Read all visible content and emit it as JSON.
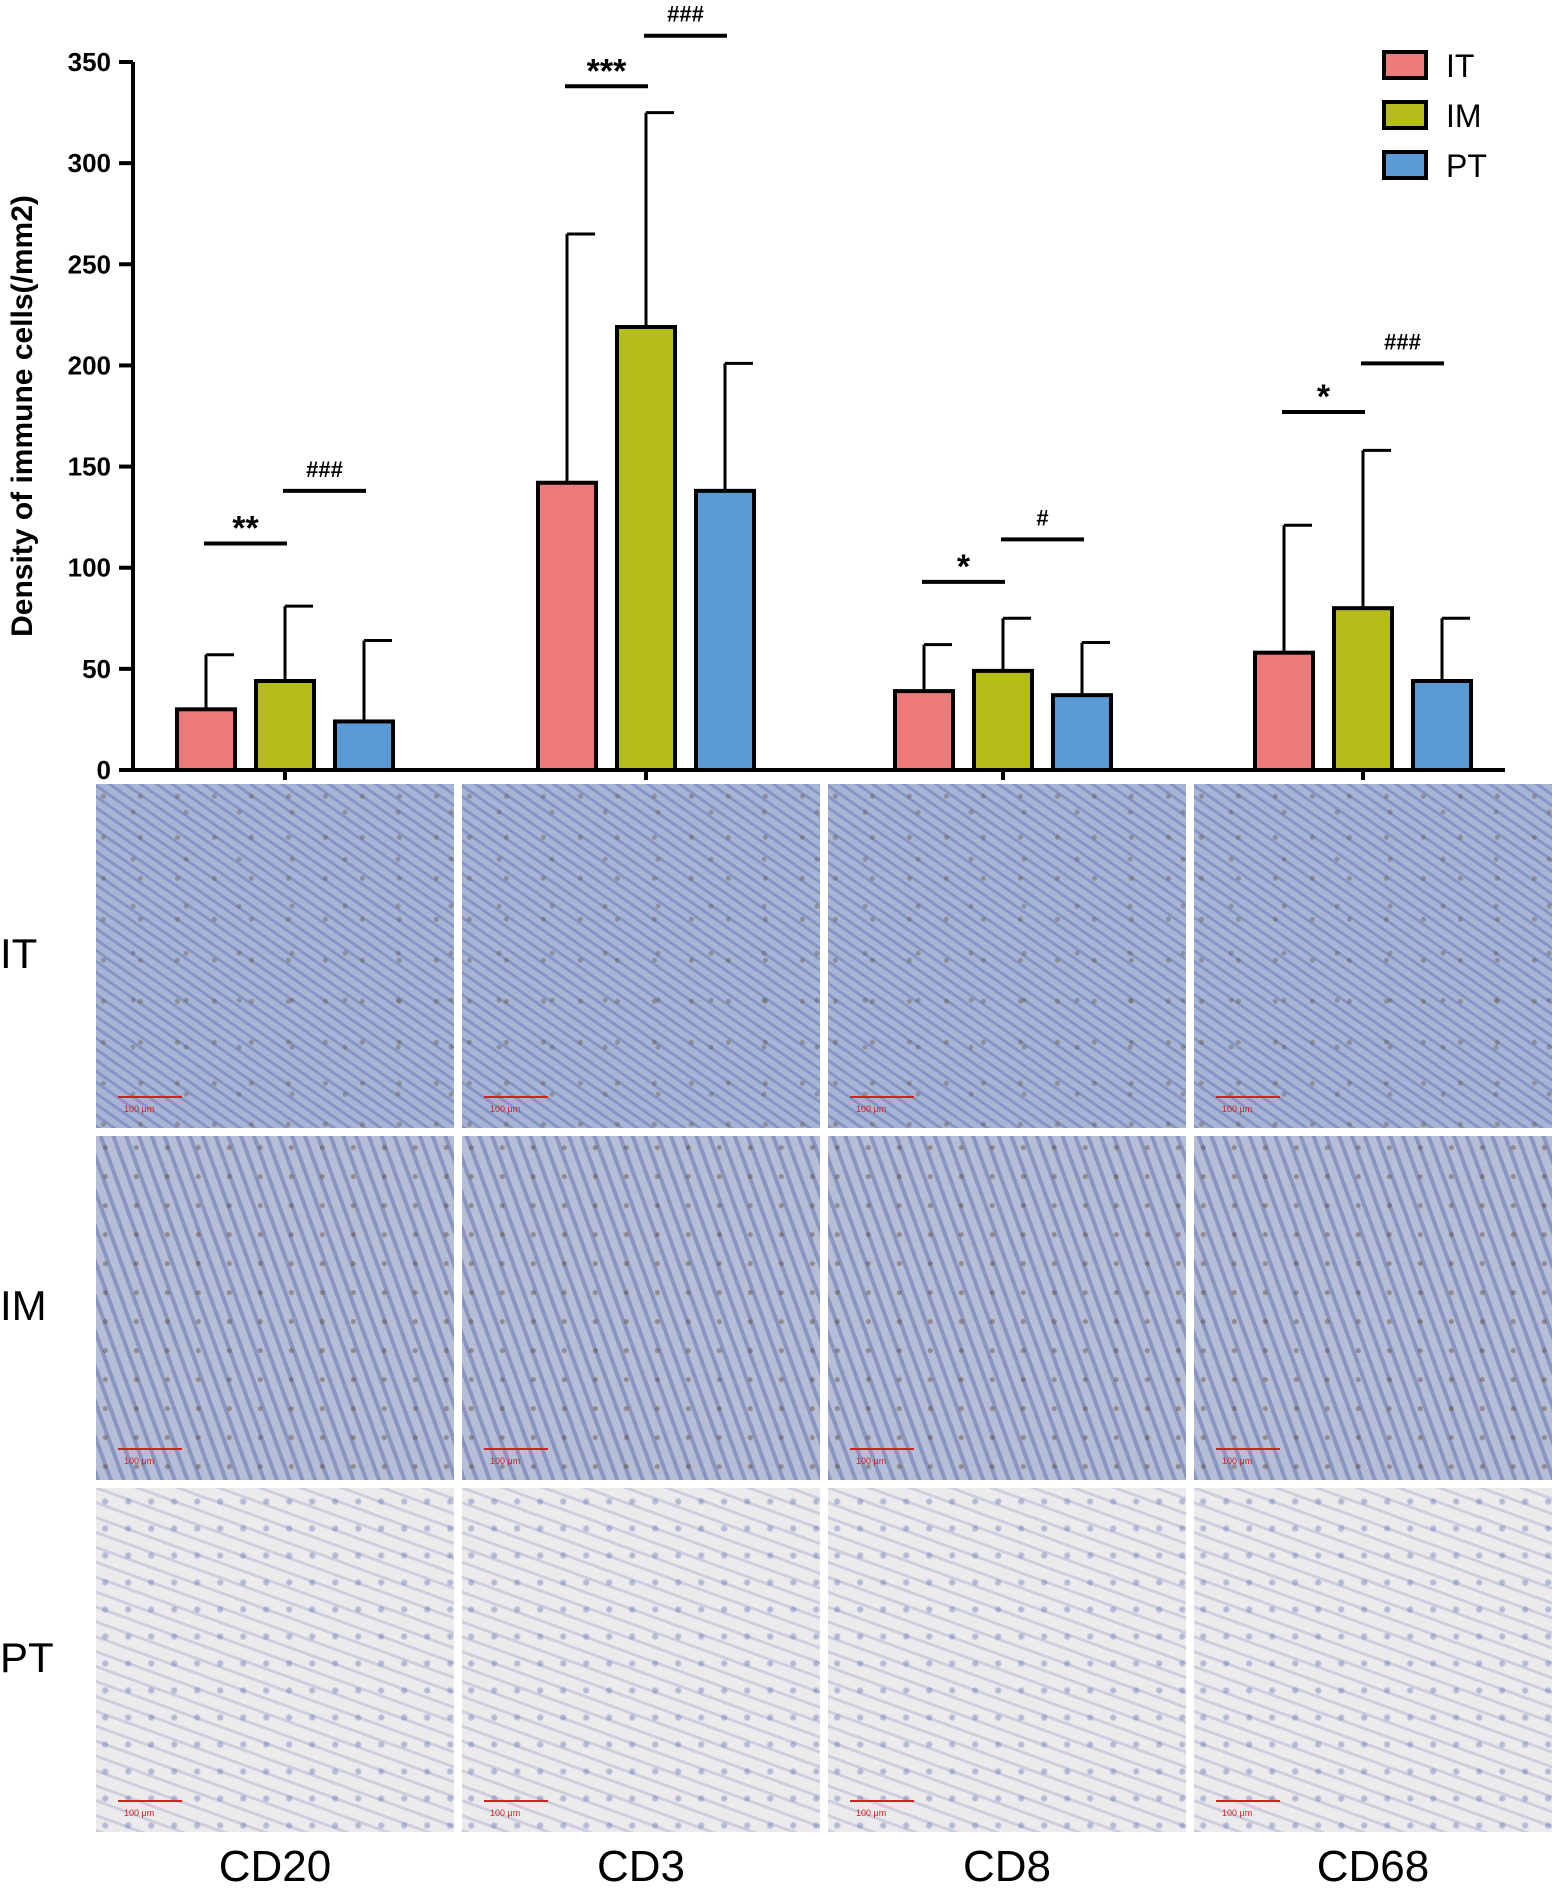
{
  "chart_data": {
    "type": "bar",
    "ylabel": "Density of immune cells(/mm2)",
    "ylim": [
      0,
      350
    ],
    "yticks": [
      0,
      50,
      100,
      150,
      200,
      250,
      300,
      350
    ],
    "categories": [
      "CD20",
      "CD3",
      "CD8",
      "CD68"
    ],
    "series": [
      {
        "name": "IT",
        "color": "#ee7a7a",
        "values": [
          30,
          142,
          39,
          58
        ],
        "errors": [
          27,
          123,
          23,
          63
        ]
      },
      {
        "name": "IM",
        "color": "#b5bd1a",
        "values": [
          44,
          219,
          49,
          80
        ],
        "errors": [
          37,
          106,
          26,
          78
        ]
      },
      {
        "name": "PT",
        "color": "#5b9bd5",
        "values": [
          24,
          138,
          37,
          44
        ],
        "errors": [
          40,
          63,
          26,
          31
        ]
      }
    ],
    "legend_position": "top-right",
    "significance": [
      {
        "category": "CD20",
        "pair": [
          "IT",
          "IM"
        ],
        "label": "**",
        "level": 112
      },
      {
        "category": "CD20",
        "pair": [
          "IM",
          "PT"
        ],
        "label": "###",
        "level": 138
      },
      {
        "category": "CD3",
        "pair": [
          "IT",
          "IM"
        ],
        "label": "***",
        "level": 338
      },
      {
        "category": "CD3",
        "pair": [
          "IM",
          "PT"
        ],
        "label": "###",
        "level": 363
      },
      {
        "category": "CD8",
        "pair": [
          "IT",
          "IM"
        ],
        "label": "*",
        "level": 93
      },
      {
        "category": "CD8",
        "pair": [
          "IM",
          "PT"
        ],
        "label": "#",
        "level": 114
      },
      {
        "category": "CD68",
        "pair": [
          "IT",
          "IM"
        ],
        "label": "*",
        "level": 177
      },
      {
        "category": "CD68",
        "pair": [
          "IM",
          "PT"
        ],
        "label": "###",
        "level": 201
      }
    ]
  },
  "micrographs": {
    "row_labels": [
      "IT",
      "IM",
      "PT"
    ],
    "col_labels": [
      "CD20",
      "CD3",
      "CD8",
      "CD68"
    ],
    "scale_label": "100 μm"
  }
}
